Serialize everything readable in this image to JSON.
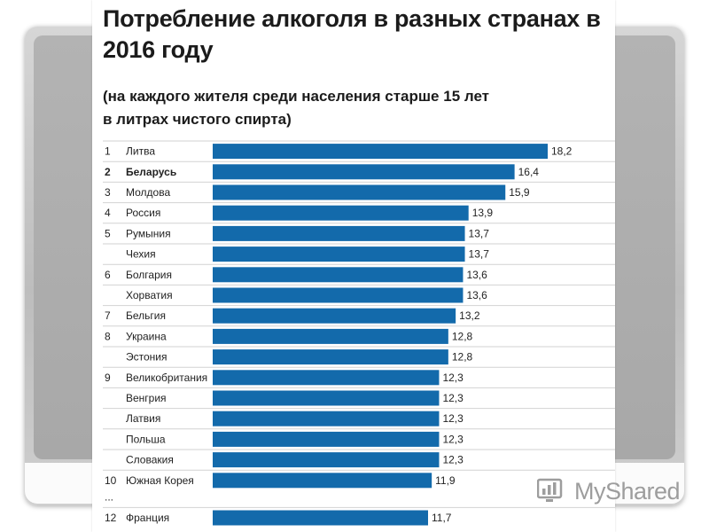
{
  "watermark": {
    "brand": "MyShared",
    "icon": "myshared-logo-icon"
  },
  "chart_data": {
    "type": "bar",
    "orientation": "horizontal",
    "title": "Потребление алкоголя в разных странах в 2016 году",
    "subtitle_line1": "(на каждого жителя среди населения старше 15 лет",
    "subtitle_line2": "в литрах чистого спирта)",
    "bar_color": "#136aab",
    "gap_marker": "...",
    "rows": [
      {
        "rank": "1",
        "country": "Литва",
        "value": 18.2,
        "label": "18,2",
        "bold": false
      },
      {
        "rank": "2",
        "country": "Беларусь",
        "value": 16.4,
        "label": "16,4",
        "bold": true
      },
      {
        "rank": "3",
        "country": "Молдова",
        "value": 15.9,
        "label": "15,9",
        "bold": false
      },
      {
        "rank": "4",
        "country": "Россия",
        "value": 13.9,
        "label": "13,9",
        "bold": false
      },
      {
        "rank": "5",
        "country": "Румыния",
        "value": 13.7,
        "label": "13,7",
        "bold": false
      },
      {
        "rank": "",
        "country": "Чехия",
        "value": 13.7,
        "label": "13,7",
        "bold": false
      },
      {
        "rank": "6",
        "country": "Болгария",
        "value": 13.6,
        "label": "13,6",
        "bold": false
      },
      {
        "rank": "",
        "country": "Хорватия",
        "value": 13.6,
        "label": "13,6",
        "bold": false
      },
      {
        "rank": "7",
        "country": "Бельгия",
        "value": 13.2,
        "label": "13,2",
        "bold": false
      },
      {
        "rank": "8",
        "country": "Украина",
        "value": 12.8,
        "label": "12,8",
        "bold": false
      },
      {
        "rank": "",
        "country": "Эстония",
        "value": 12.8,
        "label": "12,8",
        "bold": false
      },
      {
        "rank": "9",
        "country": "Великобритания",
        "value": 12.3,
        "label": "12,3",
        "bold": false
      },
      {
        "rank": "",
        "country": "Венгрия",
        "value": 12.3,
        "label": "12,3",
        "bold": false
      },
      {
        "rank": "",
        "country": "Латвия",
        "value": 12.3,
        "label": "12,3",
        "bold": false
      },
      {
        "rank": "",
        "country": "Польша",
        "value": 12.3,
        "label": "12,3",
        "bold": false
      },
      {
        "rank": "",
        "country": "Словакия",
        "value": 12.3,
        "label": "12,3",
        "bold": false
      },
      {
        "rank": "10",
        "country": "Южная Корея",
        "value": 11.9,
        "label": "11,9",
        "bold": false
      },
      {
        "rank": "12",
        "country": "Франция",
        "value": 11.7,
        "label": "11,7",
        "bold": false,
        "after_gap": true
      }
    ],
    "xlim": [
      0,
      18.2
    ],
    "grid": false,
    "legend": "none"
  }
}
